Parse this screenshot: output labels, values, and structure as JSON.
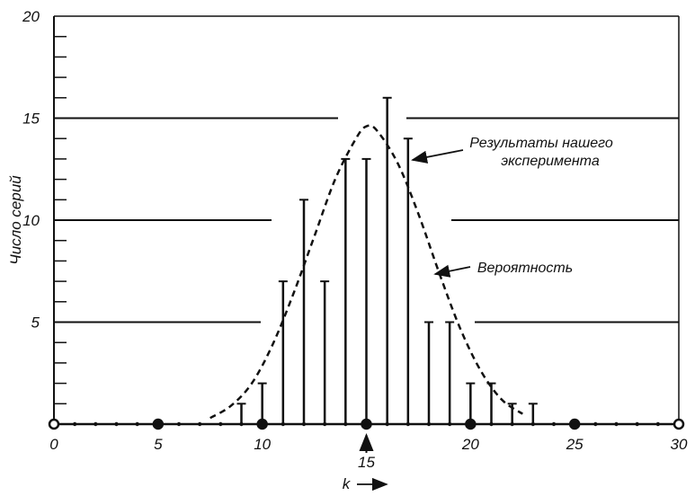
{
  "chart_data": {
    "type": "bar",
    "title": "",
    "xlabel": "k",
    "ylabel": "Число серий",
    "xlim": [
      0,
      30
    ],
    "ylim": [
      0,
      20
    ],
    "x_ticks": [
      0,
      5,
      10,
      15,
      20,
      25,
      30
    ],
    "y_ticks": [
      5,
      10,
      15,
      20
    ],
    "x_marker": 15,
    "grid": "horizontal lines at 5, 10, 15",
    "series": [
      {
        "name": "Результаты нашего эксперимента",
        "style": "vertical bars",
        "x": [
          9,
          10,
          11,
          12,
          13,
          14,
          15,
          16,
          17,
          18,
          19,
          20,
          21,
          22,
          23
        ],
        "values": [
          1,
          2,
          7,
          11,
          7,
          13,
          13,
          16,
          14,
          5,
          5,
          2,
          2,
          1,
          1
        ]
      },
      {
        "name": "Вероятность",
        "style": "dashed curve",
        "x": [
          7.5,
          8.5,
          9.5,
          10.5,
          11.5,
          12.5,
          13.5,
          14.5,
          15,
          15.5,
          16.5,
          17.5,
          18.5,
          19.5,
          20.5,
          21.5,
          22.5
        ],
        "values": [
          0.3,
          0.9,
          2.0,
          3.9,
          6.4,
          9.2,
          12.0,
          14.0,
          14.6,
          14.4,
          12.8,
          10.3,
          7.4,
          4.7,
          2.6,
          1.2,
          0.5
        ]
      }
    ],
    "annotations": [
      {
        "text_lines": [
          "Результаты нашего",
          "эксперимента"
        ],
        "points_to": "bar at k=17"
      },
      {
        "text": "Вероятность",
        "points_to": "dashed curve"
      }
    ]
  }
}
